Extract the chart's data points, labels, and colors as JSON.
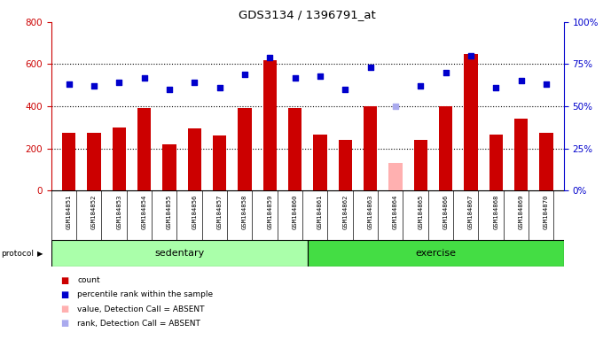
{
  "title": "GDS3134 / 1396791_at",
  "samples": [
    "GSM184851",
    "GSM184852",
    "GSM184853",
    "GSM184854",
    "GSM184855",
    "GSM184856",
    "GSM184857",
    "GSM184858",
    "GSM184859",
    "GSM184860",
    "GSM184861",
    "GSM184862",
    "GSM184863",
    "GSM184864",
    "GSM184865",
    "GSM184866",
    "GSM184867",
    "GSM184868",
    "GSM184869",
    "GSM184870"
  ],
  "counts": [
    275,
    275,
    300,
    390,
    220,
    295,
    260,
    390,
    620,
    390,
    265,
    240,
    400,
    130,
    240,
    400,
    650,
    265,
    340,
    275
  ],
  "ranks": [
    63,
    62,
    64,
    67,
    60,
    64,
    61,
    69,
    79,
    67,
    68,
    60,
    73,
    50,
    62,
    70,
    80,
    61,
    65,
    63
  ],
  "absent_count_indices": [
    13
  ],
  "absent_rank_indices": [
    13
  ],
  "bar_color": "#cc0000",
  "bar_absent_color": "#ffb0b0",
  "rank_color": "#0000cc",
  "rank_absent_color": "#aaaaee",
  "left_ylim": [
    0,
    800
  ],
  "left_yticks": [
    0,
    200,
    400,
    600,
    800
  ],
  "right_ylim": [
    0,
    100
  ],
  "right_yticks": [
    0,
    25,
    50,
    75,
    100
  ],
  "right_yticklabels": [
    "0%",
    "25%",
    "50%",
    "75%",
    "100%"
  ],
  "grid_values": [
    200,
    400,
    600
  ],
  "protocol_label": "protocol",
  "sedentary_label": "sedentary",
  "exercise_label": "exercise",
  "legend_items": [
    {
      "label": "count",
      "color": "#cc0000"
    },
    {
      "label": "percentile rank within the sample",
      "color": "#0000cc"
    },
    {
      "label": "value, Detection Call = ABSENT",
      "color": "#ffb0b0"
    },
    {
      "label": "rank, Detection Call = ABSENT",
      "color": "#aaaaee"
    }
  ],
  "bg_color": "#d8d8d8",
  "plot_bg": "#ffffff",
  "sed_color": "#aaffaa",
  "exc_color": "#44dd44"
}
